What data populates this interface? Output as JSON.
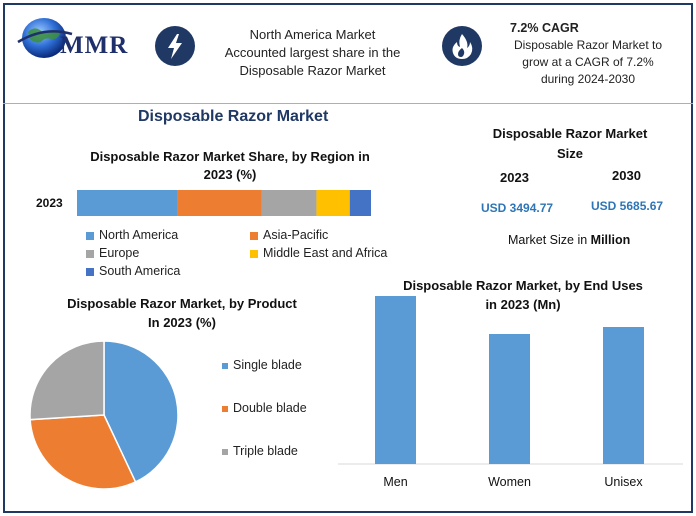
{
  "header": {
    "logo_text": "MMR",
    "highlight_1": {
      "icon": "lightning-icon",
      "lines": [
        "North America Market",
        "Accounted largest share in the",
        "Disposable Razor Market"
      ]
    },
    "highlight_2": {
      "icon": "flame-icon",
      "title": "7.2% CAGR",
      "lines": [
        "Disposable Razor Market to",
        "grow at a CAGR of 7.2%",
        "during 2024-2030"
      ]
    }
  },
  "main_title": "Disposable Razor Market",
  "size_panel": {
    "title_lines": [
      "Disposable Razor Market",
      "Size"
    ],
    "year_1": "2023",
    "year_2": "2030",
    "value_1": "USD 3494.77",
    "value_2": "USD 5685.67",
    "note_prefix": "Market Size in ",
    "note_bold": "Million"
  },
  "colors": {
    "north_america": "#5b9bd5",
    "asia_pacific": "#ed7d31",
    "europe": "#a5a5a5",
    "mea": "#ffc000",
    "south_america": "#4472c4"
  },
  "chart_data": [
    {
      "type": "bar",
      "orientation": "horizontal-stacked",
      "title_lines": [
        "Disposable Razor Market Share, by Region in",
        "2023 (%)"
      ],
      "categories": [
        "2023"
      ],
      "series": [
        {
          "name": "North America",
          "values": [
            33
          ],
          "color": "#5b9bd5"
        },
        {
          "name": "Asia-Pacific",
          "values": [
            28
          ],
          "color": "#ed7d31"
        },
        {
          "name": "Europe",
          "values": [
            18
          ],
          "color": "#a5a5a5"
        },
        {
          "name": "Middle East and Africa",
          "values": [
            11
          ],
          "color": "#ffc000"
        },
        {
          "name": "South America",
          "values": [
            7
          ],
          "color": "#4472c4"
        }
      ],
      "legend": "bottom"
    },
    {
      "type": "pie",
      "title_lines": [
        "Disposable Razor Market, by Product",
        "In 2023 (%)"
      ],
      "labels": [
        "Single blade",
        "Double blade",
        "Triple blade"
      ],
      "values": [
        43,
        31,
        26
      ],
      "colors": [
        "#5b9bd5",
        "#ed7d31",
        "#a5a5a5"
      ],
      "legend": "right"
    },
    {
      "type": "bar",
      "title_lines": [
        "Disposable Razor Market, by End Uses",
        "in 2023 (Mn)"
      ],
      "categories": [
        "Men",
        "Women",
        "Unisex"
      ],
      "values": [
        1680,
        1300,
        1370
      ],
      "ylim": [
        0,
        1680
      ],
      "color": "#5b9bd5",
      "grid": false
    }
  ]
}
